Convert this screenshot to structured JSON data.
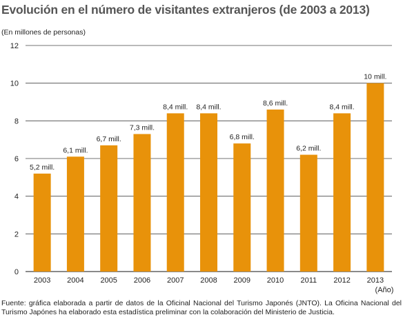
{
  "header": {
    "title": "Evolución en el número de visitantes extranjeros (de 2003 a 2013)",
    "unit_label": "(En millones de personas)"
  },
  "footer": {
    "source": "Fuente: gráfica elaborada a partir de datos de la Oficinal Nacional del Turismo Japonés (JNTO). La Oficina Nacional del Turismo Japónes ha elaborado esta estadística preliminar con la colaboración del Ministerio de Justicia."
  },
  "chart_data": {
    "type": "bar",
    "title": "Evolución en el número de visitantes extranjeros (de 2003 a 2013)",
    "ylabel": "(En millones de personas)",
    "xlabel": "(Año)",
    "categories": [
      "2003",
      "2004",
      "2005",
      "2006",
      "2007",
      "2008",
      "2009",
      "2010",
      "2011",
      "2012",
      "2013"
    ],
    "values": [
      5.2,
      6.1,
      6.7,
      7.3,
      8.4,
      8.4,
      6.8,
      8.6,
      6.2,
      8.4,
      10
    ],
    "data_labels": [
      "5,2 mill.",
      "6,1 mill.",
      "6,7 mill.",
      "7,3 mill.",
      "8,4 mill.",
      "8,4 mill.",
      "6,8 mill.",
      "8,6 mill.",
      "6,2 mill.",
      "8,4 mill.",
      "10 mill."
    ],
    "yticks": [
      0,
      2,
      4,
      6,
      8,
      10,
      12
    ],
    "ylim": [
      0,
      12
    ],
    "grid": true,
    "bar_color": "#e8920a",
    "grid_color": "#444444"
  }
}
